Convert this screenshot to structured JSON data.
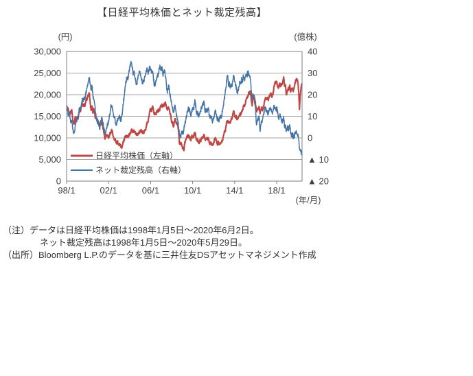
{
  "title": "【日経平均株価とネット裁定残高】",
  "axes": {
    "left_unit": "(円)",
    "right_unit": "(億株)",
    "x_unit": "(年/月)",
    "left_ticks": [
      "30,000",
      "25,000",
      "20,000",
      "15,000",
      "10,000",
      "5,000",
      "0"
    ],
    "right_ticks": [
      "40",
      "30",
      "20",
      "10",
      "0",
      "▲ 10",
      "▲ 20"
    ],
    "x_ticks": [
      "98/1",
      "02/1",
      "06/1",
      "10/1",
      "14/1",
      "18/1"
    ]
  },
  "legend": [
    {
      "label": "日経平均株価（左軸）",
      "color": "#BE4744",
      "weight": 3
    },
    {
      "label": "ネット裁定残高（右軸）",
      "color": "#4474A6",
      "weight": 2
    }
  ],
  "notes": [
    "（注）データは日経平均株価は1998年1月5日～2020年6月2日。",
    "ネット裁定残高は1998年1月5日～2020年5月29日。",
    "（出所）Bloomberg L.P.のデータを基に三井住友DSアセットマネジメント作成"
  ],
  "colors": {
    "nikkei": "#BE4744",
    "arbitrage": "#4474A6",
    "grid": "#A6A6A6",
    "border": "#7F7F7F",
    "text": "#404040"
  },
  "chart_data": {
    "type": "line",
    "title": "【日経平均株価とネット裁定残高】",
    "x_start": "1998/01",
    "x_end": "2020/06",
    "x_interval": "monthly",
    "x_tick_labels": [
      "98/1",
      "02/1",
      "06/1",
      "10/1",
      "14/1",
      "18/1"
    ],
    "months_per_tick": 48,
    "grid": true,
    "legend_position": "bottom-left-inside",
    "left_axis": {
      "label": "円",
      "range": [
        0,
        30000
      ],
      "tick_step": 5000
    },
    "right_axis": {
      "label": "億株",
      "range": [
        -20,
        40
      ],
      "tick_step": 10
    },
    "series": [
      {
        "name": "日経平均株価（左軸）",
        "axis": "left",
        "color": "#BE4744",
        "values": [
          16628,
          16832,
          16527,
          15641,
          15671,
          15830,
          16379,
          14108,
          13406,
          13565,
          14884,
          13842,
          14499,
          14368,
          15837,
          16702,
          16112,
          17530,
          17861,
          17430,
          17606,
          17439,
          18559,
          18934,
          19540,
          19959,
          20337,
          17974,
          16332,
          17411,
          15727,
          16861,
          15747,
          14540,
          14649,
          13786,
          13844,
          12884,
          12999,
          13934,
          13262,
          12969,
          11861,
          10714,
          9775,
          10366,
          10697,
          10543,
          9919,
          10588,
          11025,
          11492,
          11764,
          10622,
          9878,
          9619,
          9383,
          8640,
          9216,
          8579,
          8340,
          8363,
          7973,
          7608,
          8425,
          9083,
          9563,
          10343,
          10219,
          10560,
          10100,
          10677,
          10784,
          11042,
          11716,
          11762,
          11236,
          11859,
          11326,
          11082,
          10824,
          10772,
          10899,
          11489,
          11388,
          11740,
          11669,
          11009,
          11277,
          11584,
          11900,
          12414,
          13574,
          13606,
          14872,
          16111,
          16649,
          16205,
          17060,
          16906,
          15467,
          15505,
          15457,
          16141,
          16128,
          16399,
          16274,
          17226,
          17383,
          17604,
          17288,
          17400,
          17876,
          18138,
          17249,
          16569,
          16786,
          16738,
          15681,
          15308,
          13592,
          13603,
          12526,
          13850,
          14339,
          13481,
          13377,
          13073,
          11260,
          8577,
          8512,
          8860,
          7994,
          7568,
          7055,
          8828,
          9523,
          9958,
          10357,
          10493,
          10133,
          10035,
          9346,
          10546,
          10198,
          10126,
          11090,
          11057,
          9769,
          9383,
          9537,
          8824,
          9369,
          9202,
          9937,
          10229,
          10238,
          10624,
          9755,
          9850,
          9694,
          9816,
          9833,
          8955,
          8700,
          8988,
          8435,
          8455,
          8803,
          9723,
          10084,
          9521,
          8543,
          9007,
          8695,
          8840,
          8870,
          8928,
          9446,
          10395,
          11139,
          11559,
          12398,
          13861,
          13775,
          13677,
          13668,
          13389,
          14456,
          14328,
          15662,
          16291,
          14915,
          14841,
          14828,
          14304,
          14632,
          15162,
          15621,
          15425,
          16174,
          16414,
          17460,
          17451,
          17674,
          18798,
          19207,
          19520,
          20563,
          20236,
          20585,
          18890,
          17388,
          19083,
          19747,
          19034,
          17518,
          16027,
          16759,
          16666,
          17235,
          15576,
          16569,
          16887,
          16450,
          17425,
          18308,
          19114,
          19041,
          19119,
          18909,
          19197,
          19651,
          20033,
          19925,
          19646,
          20356,
          22012,
          22725,
          22765,
          23098,
          22068,
          21454,
          22468,
          22202,
          22305,
          22554,
          22865,
          24120,
          21920,
          22351,
          20015,
          20773,
          21385,
          21206,
          22259,
          20601,
          21276,
          21522,
          20704,
          21756,
          22927,
          23294,
          23657,
          23205,
          21143,
          16553,
          20194,
          21878,
          22326
        ]
      },
      {
        "name": "ネット裁定残高（右軸）",
        "axis": "right",
        "color": "#4474A6",
        "values": [
          15,
          13,
          10,
          12,
          9,
          7,
          8,
          4,
          2,
          3,
          6,
          8,
          10,
          9,
          12,
          14,
          13,
          16,
          18,
          17,
          19,
          18,
          21,
          23,
          24,
          26,
          28,
          25,
          22,
          24,
          20,
          18,
          16,
          12,
          9,
          7,
          8,
          6,
          4,
          7,
          9,
          8,
          6,
          4,
          2,
          3,
          5,
          6,
          8,
          10,
          13,
          15,
          14,
          12,
          10,
          9,
          7,
          6,
          8,
          9,
          10,
          9,
          8,
          10,
          13,
          17,
          20,
          24,
          26,
          28,
          27,
          30,
          32,
          34,
          35,
          33,
          29,
          31,
          28,
          26,
          25,
          27,
          29,
          31,
          30,
          28,
          27,
          25,
          26,
          28,
          29,
          31,
          32,
          30,
          31,
          33,
          32,
          30,
          31,
          29,
          24,
          25,
          26,
          28,
          29,
          30,
          32,
          33,
          31,
          33,
          29,
          30,
          31,
          28,
          25,
          21,
          23,
          24,
          20,
          18,
          16,
          14,
          12,
          14,
          15,
          12,
          10,
          8,
          5,
          1,
          0,
          2,
          3,
          2,
          4,
          6,
          8,
          10,
          12,
          14,
          13,
          12,
          10,
          13,
          14,
          13,
          16,
          17,
          13,
          11,
          12,
          10,
          11,
          12,
          14,
          15,
          16,
          17,
          12,
          13,
          12,
          13,
          14,
          10,
          9,
          10,
          8,
          8,
          9,
          11,
          13,
          11,
          8,
          9,
          8,
          9,
          10,
          10,
          12,
          15,
          18,
          20,
          23,
          27,
          29,
          24,
          26,
          23,
          25,
          24,
          27,
          29,
          26,
          24,
          23,
          21,
          22,
          24,
          26,
          25,
          28,
          26,
          29,
          27,
          28,
          29,
          29,
          30,
          30,
          29,
          27,
          22,
          18,
          20,
          19,
          16,
          12,
          6,
          8,
          9,
          10,
          3,
          6,
          8,
          9,
          11,
          13,
          14,
          13,
          12,
          11,
          12,
          13,
          14,
          13,
          11,
          13,
          15,
          14,
          13,
          14,
          12,
          9,
          10,
          11,
          9,
          8,
          8,
          10,
          5,
          6,
          3,
          4,
          5,
          4,
          6,
          2,
          1,
          2,
          0,
          1,
          2,
          3,
          2,
          1,
          0,
          -5,
          -6,
          -7,
          -7
        ]
      }
    ]
  }
}
